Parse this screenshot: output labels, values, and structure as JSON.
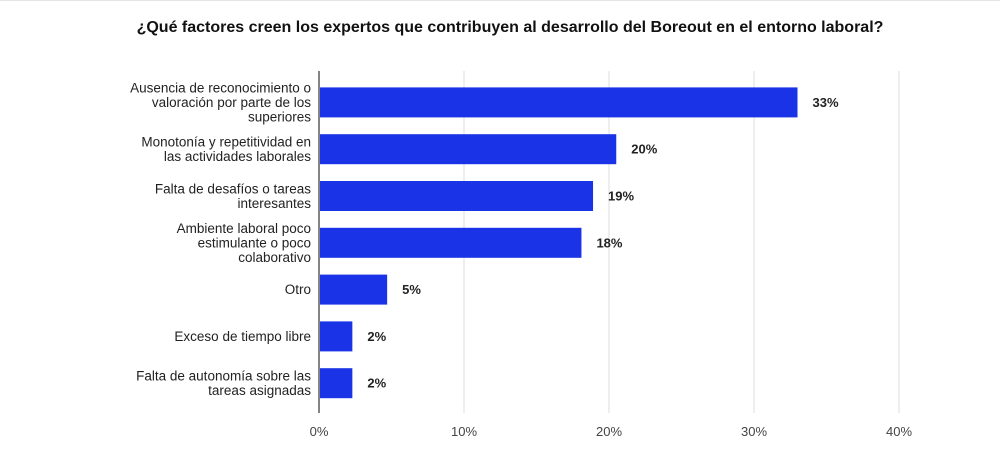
{
  "chart_data": {
    "type": "bar",
    "orientation": "horizontal",
    "title": "¿Qué factores creen los expertos que contribuyen al desarrollo del Boreout en el entorno laboral?",
    "categories": [
      [
        "Ausencia de reconocimiento o",
        "valoración por parte de los",
        "superiores"
      ],
      [
        "Monotonía y repetitividad en",
        "las actividades laborales"
      ],
      [
        "Falta de desafíos o tareas",
        "interesantes"
      ],
      [
        "Ambiente laboral poco",
        "estimulante o poco",
        "colaborativo"
      ],
      [
        "Otro"
      ],
      [
        "Exceso de tiempo libre"
      ],
      [
        "Falta de autonomía sobre las",
        "tareas asignadas"
      ]
    ],
    "values": [
      33,
      20.5,
      18.9,
      18.1,
      4.7,
      2.3,
      2.3
    ],
    "data_labels": [
      "33%",
      "20%",
      "19%",
      "18%",
      "5%",
      "2%",
      "2%"
    ],
    "xlim": [
      0,
      40
    ],
    "x_ticks": [
      0,
      10,
      20,
      30,
      40
    ],
    "x_tick_labels": [
      "0%",
      "10%",
      "20%",
      "30%",
      "40%"
    ],
    "bar_color": "#1a33e6",
    "grid": true
  }
}
